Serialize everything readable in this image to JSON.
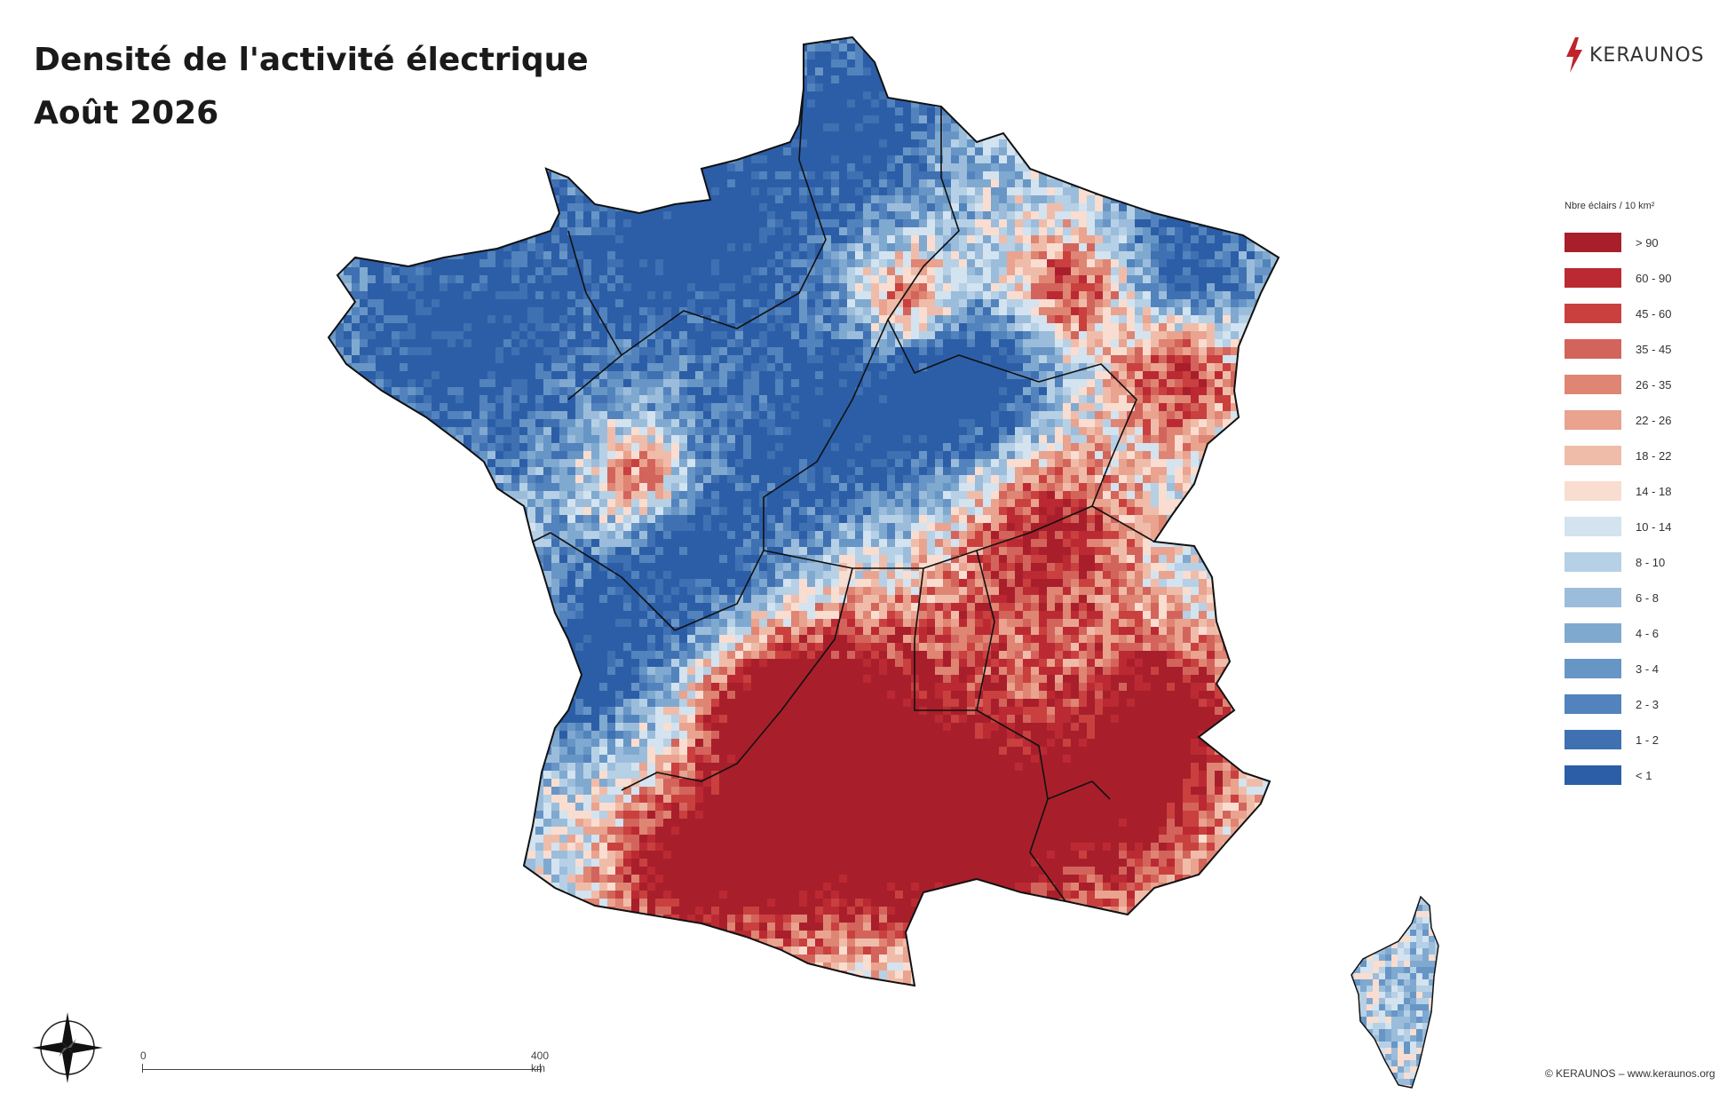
{
  "title": {
    "line1": "Densité de l'activité électrique",
    "line2": "Août 2026"
  },
  "logo": {
    "text": "KERAUNOS",
    "icon": "lightning-bolt-icon",
    "color": "#c0232c"
  },
  "legend": {
    "title": "Nbre éclairs / 10 km²",
    "classes": [
      {
        "label": "> 90",
        "color": "#a81f2b"
      },
      {
        "label": "60 - 90",
        "color": "#bb2a33"
      },
      {
        "label": "45 - 60",
        "color": "#c9403f"
      },
      {
        "label": "35 - 45",
        "color": "#d3645c"
      },
      {
        "label": "26 - 35",
        "color": "#df8573"
      },
      {
        "label": "22 - 26",
        "color": "#e9a38f"
      },
      {
        "label": "18 - 22",
        "color": "#f0bcaa"
      },
      {
        "label": "14 - 18",
        "color": "#f9ddd0"
      },
      {
        "label": "10 - 14",
        "color": "#d3e3ef"
      },
      {
        "label": "8 - 10",
        "color": "#b6d0e6"
      },
      {
        "label": "6 - 8",
        "color": "#9bbddb"
      },
      {
        "label": "4 - 6",
        "color": "#80a9d0"
      },
      {
        "label": "3 - 4",
        "color": "#6796c6"
      },
      {
        "label": "2 - 3",
        "color": "#5283bd"
      },
      {
        "label": "1 - 2",
        "color": "#3f70b2"
      },
      {
        "label": "< 1",
        "color": "#2c5ea7"
      }
    ]
  },
  "scale_bar": {
    "start_label": "0",
    "end_label": "400 km"
  },
  "copyright": "© KERAUNOS – www.keraunos.org",
  "compass": {
    "icon": "compass-rose-icon"
  }
}
